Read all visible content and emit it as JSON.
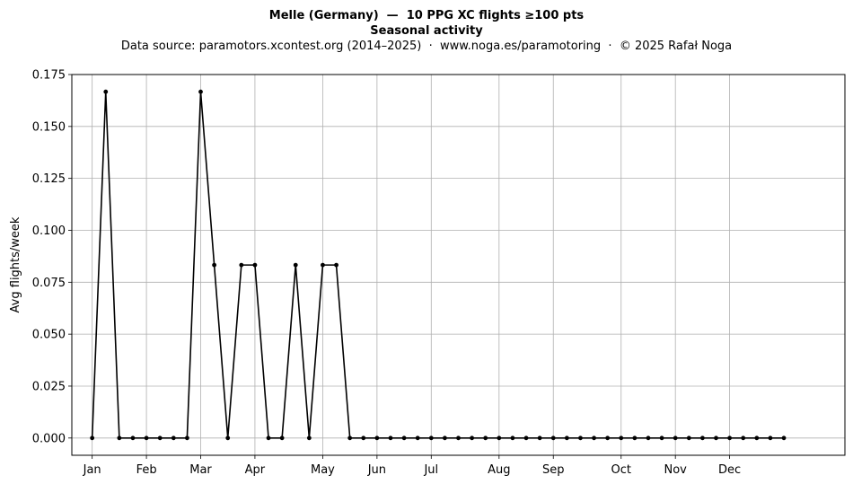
{
  "chart_data": {
    "type": "line",
    "title": "Melle (Germany)  —  10 PPG XC flights ≥100 pts",
    "subtitle": "Seasonal activity",
    "source": "Data source: paramotors.xcontest.org (2014–2025)  ·  www.noga.es/paramotoring  ·  © 2025 Rafał Noga",
    "xlabel": "",
    "ylabel": "Avg flights/week",
    "ylim": [
      -0.0083,
      0.175
    ],
    "xlim": [
      -1.5,
      55.5
    ],
    "grid": true,
    "yticks": [
      0,
      0.025,
      0.05,
      0.075,
      0.1,
      0.125,
      0.15,
      0.175
    ],
    "ytick_labels": [
      "0.000",
      "0.025",
      "0.050",
      "0.075",
      "0.100",
      "0.125",
      "0.150",
      "0.175"
    ],
    "xticks": [
      0,
      4,
      8,
      12,
      17,
      21,
      25,
      30,
      34,
      39,
      43,
      47
    ],
    "xtick_labels": [
      "Jan",
      "Feb",
      "Mar",
      "Apr",
      "May",
      "Jun",
      "Jul",
      "Aug",
      "Sep",
      "Oct",
      "Nov",
      "Dec"
    ],
    "color": "#000000",
    "x": [
      0,
      1,
      2,
      3,
      4,
      5,
      6,
      7,
      8,
      9,
      10,
      11,
      12,
      13,
      14,
      15,
      16,
      17,
      18,
      19,
      20,
      21,
      22,
      23,
      24,
      25,
      26,
      27,
      28,
      29,
      30,
      31,
      32,
      33,
      34,
      35,
      36,
      37,
      38,
      39,
      40,
      41,
      42,
      43,
      44,
      45,
      46,
      47,
      48,
      49,
      50,
      51
    ],
    "values": [
      0,
      0.1667,
      0,
      0,
      0,
      0,
      0,
      0,
      0.1667,
      0.0833,
      0,
      0.0833,
      0.0833,
      0,
      0,
      0.0833,
      0,
      0.0833,
      0.0833,
      0,
      0,
      0,
      0,
      0,
      0,
      0,
      0,
      0,
      0,
      0,
      0,
      0,
      0,
      0,
      0,
      0,
      0,
      0,
      0,
      0,
      0,
      0,
      0,
      0,
      0,
      0,
      0,
      0,
      0,
      0,
      0,
      0
    ]
  }
}
